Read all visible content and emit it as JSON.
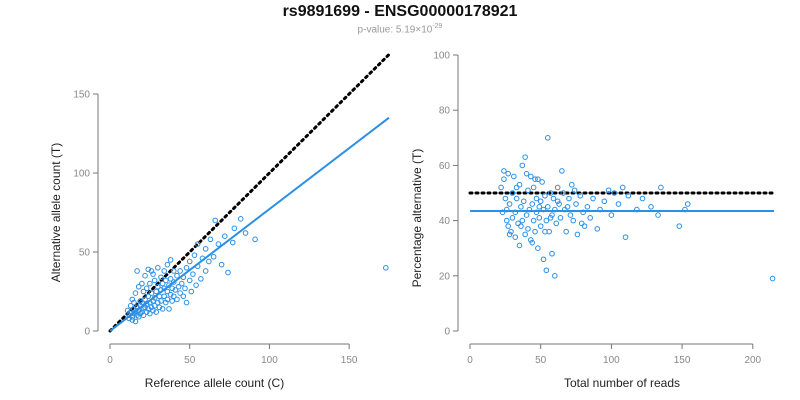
{
  "header": {
    "title": "rs9891699 - ENSG00000178921",
    "pvalue_prefix": "p-value: 5.19×10",
    "pvalue_exponent": "-29"
  },
  "colors": {
    "points": "#2b8fe6",
    "fit_line": "#2b8fe6",
    "reference_line": "#000000",
    "axis": "#777777",
    "tick_label": "#888888",
    "axis_title": "#222222"
  },
  "chart_data": [
    {
      "type": "scatter",
      "title": "",
      "xlabel": "Reference allele count (C)",
      "ylabel": "Alternative allele count (T)",
      "xlim": [
        0,
        175
      ],
      "ylim": [
        0,
        150
      ],
      "xticks": [
        0,
        50,
        100,
        150
      ],
      "yticks": [
        0,
        50,
        100,
        150
      ],
      "grid": false,
      "points": [
        [
          12,
          10
        ],
        [
          13,
          12
        ],
        [
          14,
          9
        ],
        [
          15,
          11
        ],
        [
          15,
          14
        ],
        [
          16,
          12
        ],
        [
          17,
          10
        ],
        [
          17,
          15
        ],
        [
          18,
          13
        ],
        [
          18,
          9
        ],
        [
          19,
          16
        ],
        [
          19,
          11
        ],
        [
          20,
          12
        ],
        [
          20,
          18
        ],
        [
          21,
          14
        ],
        [
          21,
          10
        ],
        [
          22,
          15
        ],
        [
          22,
          20
        ],
        [
          23,
          12
        ],
        [
          23,
          17
        ],
        [
          24,
          14
        ],
        [
          24,
          22
        ],
        [
          25,
          18
        ],
        [
          25,
          11
        ],
        [
          26,
          15
        ],
        [
          26,
          24
        ],
        [
          27,
          19
        ],
        [
          27,
          13
        ],
        [
          28,
          21
        ],
        [
          28,
          16
        ],
        [
          29,
          25
        ],
        [
          29,
          12
        ],
        [
          30,
          18
        ],
        [
          30,
          28
        ],
        [
          31,
          22
        ],
        [
          31,
          15
        ],
        [
          32,
          26
        ],
        [
          32,
          19
        ],
        [
          33,
          30
        ],
        [
          33,
          14
        ],
        [
          34,
          22
        ],
        [
          34,
          27
        ],
        [
          35,
          18
        ],
        [
          35,
          32
        ],
        [
          36,
          25
        ],
        [
          36,
          20
        ],
        [
          37,
          29
        ],
        [
          37,
          14
        ],
        [
          38,
          23
        ],
        [
          38,
          33
        ],
        [
          39,
          27
        ],
        [
          39,
          19
        ],
        [
          40,
          31
        ],
        [
          40,
          22
        ],
        [
          41,
          26
        ],
        [
          42,
          35
        ],
        [
          42,
          20
        ],
        [
          43,
          28
        ],
        [
          44,
          24
        ],
        [
          44,
          38
        ],
        [
          45,
          30
        ],
        [
          46,
          22
        ],
        [
          46,
          34
        ],
        [
          47,
          27
        ],
        [
          48,
          40
        ],
        [
          48,
          18
        ],
        [
          50,
          32
        ],
        [
          50,
          44
        ],
        [
          51,
          25
        ],
        [
          52,
          36
        ],
        [
          53,
          48
        ],
        [
          54,
          29
        ],
        [
          55,
          41
        ],
        [
          55,
          55
        ],
        [
          57,
          33
        ],
        [
          58,
          46
        ],
        [
          60,
          38
        ],
        [
          60,
          52
        ],
        [
          62,
          44
        ],
        [
          63,
          58
        ],
        [
          65,
          47
        ],
        [
          66,
          70
        ],
        [
          68,
          55
        ],
        [
          70,
          42
        ],
        [
          72,
          60
        ],
        [
          74,
          37
        ],
        [
          77,
          56
        ],
        [
          78,
          65
        ],
        [
          82,
          71
        ],
        [
          85,
          62
        ],
        [
          91,
          58
        ],
        [
          14,
          20
        ],
        [
          16,
          24
        ],
        [
          18,
          28
        ],
        [
          20,
          30
        ],
        [
          22,
          35
        ],
        [
          24,
          39
        ],
        [
          26,
          38
        ],
        [
          28,
          32
        ],
        [
          30,
          40
        ],
        [
          32,
          34
        ],
        [
          34,
          38
        ],
        [
          36,
          42
        ],
        [
          38,
          45
        ],
        [
          40,
          38
        ],
        [
          17,
          38
        ],
        [
          25,
          30
        ],
        [
          27,
          36
        ],
        [
          19,
          19
        ],
        [
          21,
          25
        ],
        [
          23,
          27
        ],
        [
          13,
          16
        ],
        [
          15,
          18
        ],
        [
          11,
          13
        ],
        [
          12,
          8
        ],
        [
          14,
          7
        ],
        [
          16,
          6
        ],
        [
          173,
          40
        ]
      ],
      "fit_line": [
        [
          0,
          0
        ],
        [
          175,
          135
        ]
      ],
      "reference_line": [
        [
          0,
          0
        ],
        [
          175,
          175
        ]
      ]
    },
    {
      "type": "scatter",
      "title": "",
      "xlabel": "Total number of reads",
      "ylabel": "Percentage alternative (T)",
      "xlim": [
        0,
        215
      ],
      "ylim": [
        0,
        100
      ],
      "xticks": [
        0,
        50,
        100,
        150,
        200
      ],
      "yticks": [
        0,
        20,
        40,
        60,
        80,
        100
      ],
      "grid": false,
      "points": [
        [
          22,
          52
        ],
        [
          23,
          43
        ],
        [
          24,
          55
        ],
        [
          25,
          48
        ],
        [
          26,
          44
        ],
        [
          27,
          57
        ],
        [
          27,
          38
        ],
        [
          28,
          46
        ],
        [
          29,
          36
        ],
        [
          30,
          50
        ],
        [
          30,
          41
        ],
        [
          31,
          56
        ],
        [
          32,
          43
        ],
        [
          32,
          34
        ],
        [
          33,
          48
        ],
        [
          34,
          39
        ],
        [
          35,
          53
        ],
        [
          35,
          31
        ],
        [
          36,
          45
        ],
        [
          37,
          60
        ],
        [
          37,
          40
        ],
        [
          38,
          47
        ],
        [
          39,
          35
        ],
        [
          39,
          63
        ],
        [
          40,
          42
        ],
        [
          41,
          51
        ],
        [
          41,
          37
        ],
        [
          42,
          44
        ],
        [
          43,
          56
        ],
        [
          43,
          33
        ],
        [
          44,
          46
        ],
        [
          45,
          40
        ],
        [
          45,
          52
        ],
        [
          46,
          36
        ],
        [
          47,
          48
        ],
        [
          47,
          43
        ],
        [
          48,
          55
        ],
        [
          48,
          30
        ],
        [
          49,
          41
        ],
        [
          50,
          47
        ],
        [
          50,
          38
        ],
        [
          51,
          54
        ],
        [
          52,
          44
        ],
        [
          52,
          26
        ],
        [
          53,
          49
        ],
        [
          54,
          40
        ],
        [
          54,
          22
        ],
        [
          55,
          45
        ],
        [
          55,
          70
        ],
        [
          56,
          36
        ],
        [
          57,
          50
        ],
        [
          58,
          42
        ],
        [
          58,
          28
        ],
        [
          59,
          48
        ],
        [
          60,
          20
        ],
        [
          60,
          44
        ],
        [
          61,
          39
        ],
        [
          62,
          52
        ],
        [
          63,
          46
        ],
        [
          64,
          41
        ],
        [
          65,
          58
        ],
        [
          66,
          50
        ],
        [
          67,
          44
        ],
        [
          68,
          36
        ],
        [
          70,
          48
        ],
        [
          71,
          42
        ],
        [
          72,
          53
        ],
        [
          73,
          40
        ],
        [
          75,
          46
        ],
        [
          76,
          35
        ],
        [
          78,
          49
        ],
        [
          80,
          43
        ],
        [
          81,
          38
        ],
        [
          83,
          45
        ],
        [
          85,
          41
        ],
        [
          87,
          48
        ],
        [
          90,
          37
        ],
        [
          92,
          44
        ],
        [
          95,
          47
        ],
        [
          98,
          51
        ],
        [
          100,
          42
        ],
        [
          102,
          50
        ],
        [
          105,
          46
        ],
        [
          108,
          52
        ],
        [
          110,
          34
        ],
        [
          112,
          49
        ],
        [
          118,
          44
        ],
        [
          122,
          48
        ],
        [
          128,
          45
        ],
        [
          133,
          42
        ],
        [
          135,
          52
        ],
        [
          148,
          38
        ],
        [
          152,
          44
        ],
        [
          154,
          46
        ],
        [
          214,
          19
        ],
        [
          24,
          58
        ],
        [
          26,
          40
        ],
        [
          28,
          35
        ],
        [
          33,
          52
        ],
        [
          36,
          38
        ],
        [
          40,
          57
        ],
        [
          44,
          32
        ],
        [
          46,
          55
        ],
        [
          49,
          45
        ],
        [
          53,
          36
        ],
        [
          57,
          41
        ],
        [
          62,
          47
        ],
        [
          69,
          45
        ],
        [
          74,
          51
        ],
        [
          79,
          39
        ]
      ],
      "fit_line_y": 43.5,
      "reference_line_y": 50
    }
  ]
}
